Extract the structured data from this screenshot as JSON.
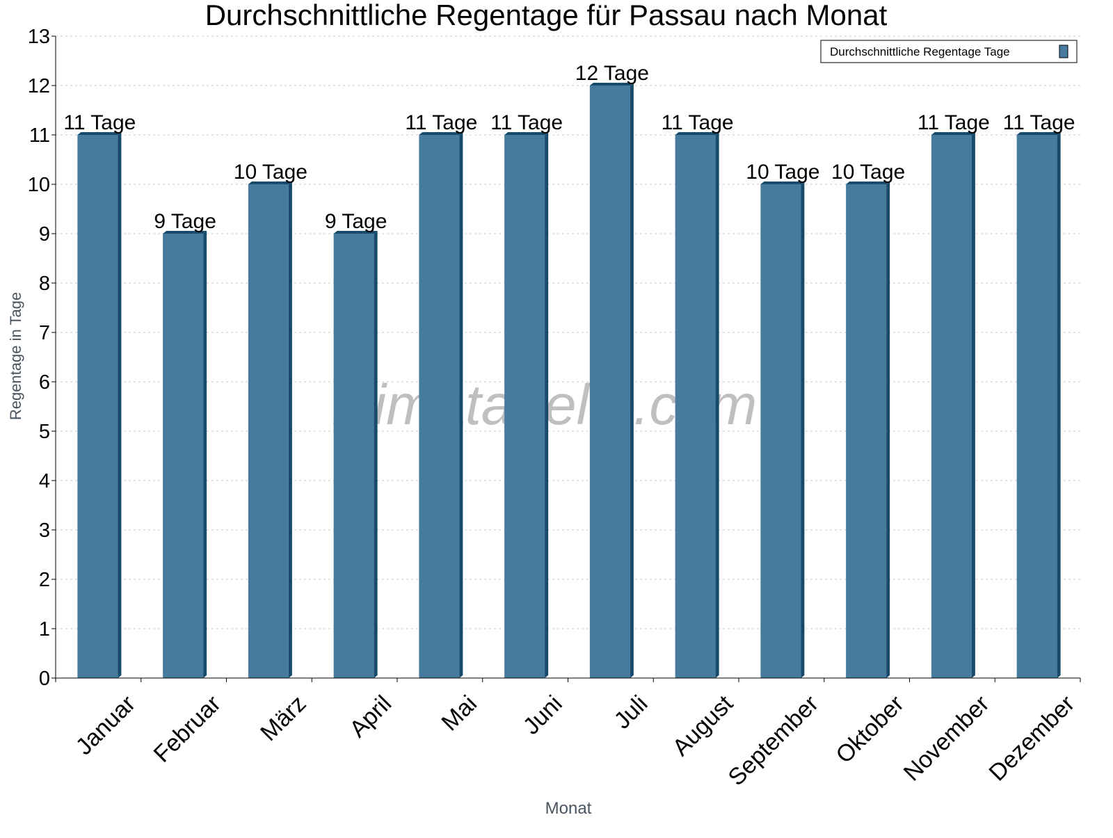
{
  "chart_data": {
    "type": "bar",
    "title": "Durchschnittliche Regentage für Passau nach Monat",
    "xlabel": "Monat",
    "ylabel": "Regentage in Tage",
    "categories": [
      "Januar",
      "Februar",
      "März",
      "April",
      "Mai",
      "Juni",
      "Juli",
      "August",
      "September",
      "Oktober",
      "November",
      "Dezember"
    ],
    "series": [
      {
        "name": "Durchschnittliche Regentage Tage",
        "values": [
          11,
          9,
          10,
          9,
          11,
          11,
          12,
          11,
          10,
          10,
          11,
          11
        ],
        "color": "#467b9e",
        "side_color": "#174a6b"
      }
    ],
    "data_labels": [
      "11 Tage",
      "9 Tage",
      "10 Tage",
      "9 Tage",
      "11 Tage",
      "11 Tage",
      "12 Tage",
      "11 Tage",
      "10 Tage",
      "10 Tage",
      "11 Tage",
      "11 Tage"
    ],
    "ylim": [
      0,
      13
    ],
    "yticks": [
      0,
      1,
      2,
      3,
      4,
      5,
      6,
      7,
      8,
      9,
      10,
      11,
      12,
      13
    ],
    "grid": true,
    "legend": "top-right",
    "watermark": "klimatabelle.com"
  }
}
